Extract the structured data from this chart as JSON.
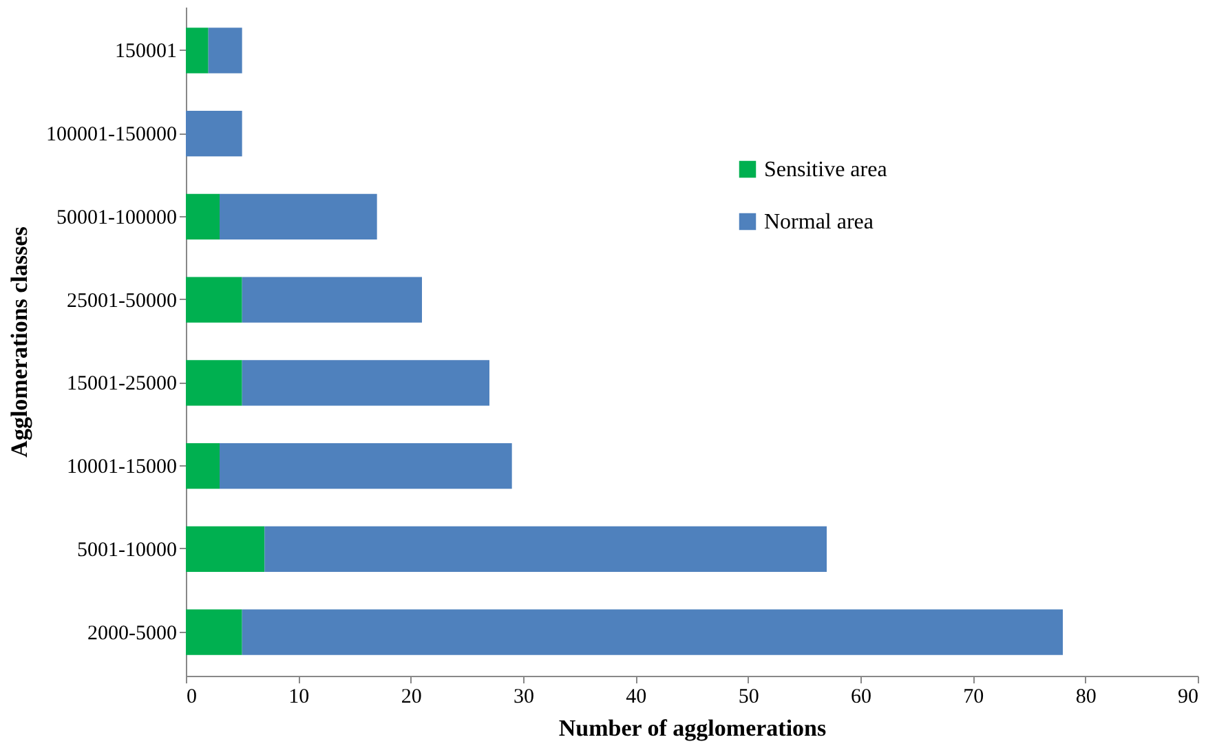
{
  "chart_data": {
    "type": "bar",
    "orientation": "horizontal",
    "stacked": true,
    "xlabel": "Number of agglomerations",
    "ylabel": "Agglomerations classes",
    "categories": [
      "150001",
      "100001-150000",
      "50001-100000",
      "25001-50000",
      "15001-25000",
      "10001-15000",
      "5001-10000",
      "2000-5000"
    ],
    "series": [
      {
        "name": "Sensitive area",
        "color": "#00b050",
        "values": [
          2,
          0,
          3,
          5,
          5,
          3,
          7,
          5
        ]
      },
      {
        "name": "Normal area",
        "color": "#4f81bd",
        "values": [
          3,
          5,
          14,
          16,
          22,
          26,
          50,
          73
        ]
      }
    ],
    "xlim": [
      0,
      90
    ],
    "xticks": [
      0,
      10,
      20,
      30,
      40,
      50,
      60,
      70,
      80,
      90
    ],
    "grid": false,
    "legend": "top right"
  }
}
